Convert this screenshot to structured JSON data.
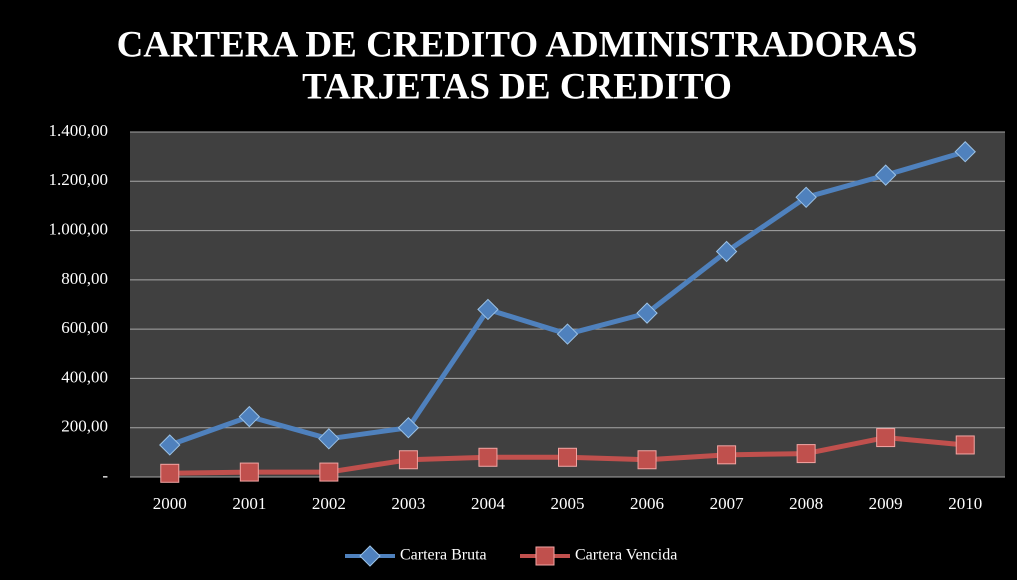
{
  "chart_data": {
    "type": "line",
    "title": [
      "CARTERA DE CREDITO ADMINISTRADORAS",
      "TARJETAS DE CREDITO"
    ],
    "categories": [
      "2000",
      "2001",
      "2002",
      "2003",
      "2004",
      "2005",
      "2006",
      "2007",
      "2008",
      "2009",
      "2010"
    ],
    "series": [
      {
        "name": "Cartera Bruta",
        "color": "#4f81bd",
        "marker": "diamond",
        "values": [
          130,
          245,
          155,
          200,
          680,
          580,
          665,
          915,
          1135,
          1225,
          1320
        ]
      },
      {
        "name": "Cartera Vencida",
        "color": "#c0504d",
        "marker": "square",
        "values": [
          15,
          20,
          20,
          70,
          80,
          80,
          70,
          90,
          95,
          160,
          130
        ]
      }
    ],
    "ylim": [
      0,
      1400
    ],
    "yticks": [
      {
        "value": 0,
        "label": "-"
      },
      {
        "value": 200,
        "label": "200,00"
      },
      {
        "value": 400,
        "label": "400,00"
      },
      {
        "value": 600,
        "label": "600,00"
      },
      {
        "value": 800,
        "label": "800,00"
      },
      {
        "value": 1000,
        "label": "1.000,00"
      },
      {
        "value": 1200,
        "label": "1.200,00"
      },
      {
        "value": 1400,
        "label": "1.400,00"
      }
    ],
    "grid": true,
    "legend": "bottom"
  }
}
